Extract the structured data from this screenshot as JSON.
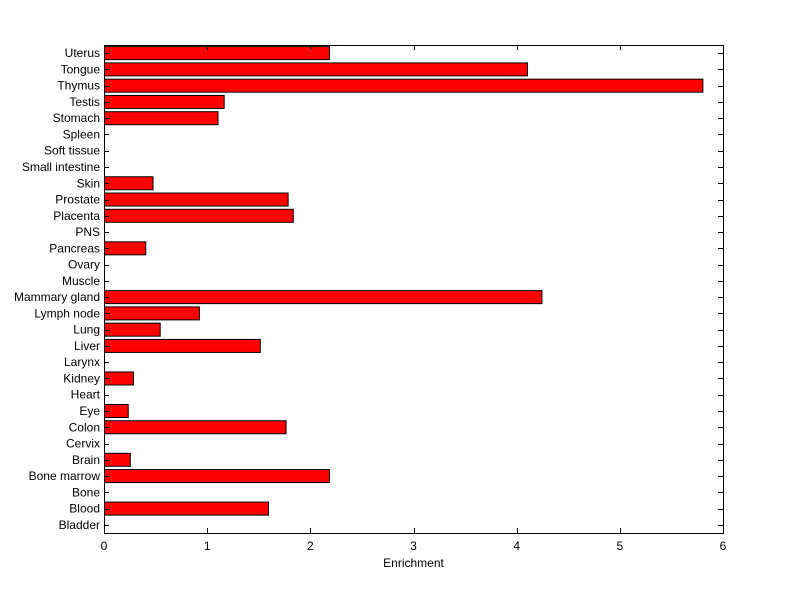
{
  "chart_data": {
    "type": "bar",
    "orientation": "horizontal",
    "title": "",
    "xlabel": "Enrichment",
    "ylabel": "",
    "xlim": [
      0,
      6
    ],
    "xticks": [
      0,
      1,
      2,
      3,
      4,
      5,
      6
    ],
    "grid": false,
    "legend": "none",
    "bar_color": "#ff0000",
    "bar_edge_color": "#000000",
    "categories": [
      "Bladder",
      "Blood",
      "Bone",
      "Bone marrow",
      "Brain",
      "Cervix",
      "Colon",
      "Eye",
      "Heart",
      "Kidney",
      "Larynx",
      "Liver",
      "Lung",
      "Lymph node",
      "Mammary gland",
      "Muscle",
      "Ovary",
      "Pancreas",
      "PNS",
      "Placenta",
      "Prostate",
      "Skin",
      "Small intestine",
      "Soft tissue",
      "Spleen",
      "Stomach",
      "Testis",
      "Thymus",
      "Tongue",
      "Uterus"
    ],
    "values": [
      0,
      1.59,
      0,
      2.18,
      0.25,
      0,
      1.76,
      0.23,
      0,
      0.28,
      0,
      1.51,
      0.54,
      0.92,
      4.24,
      0,
      0,
      0.4,
      0,
      1.83,
      1.78,
      0.47,
      0,
      0,
      0,
      1.1,
      1.16,
      5.8,
      4.1,
      2.18
    ]
  }
}
